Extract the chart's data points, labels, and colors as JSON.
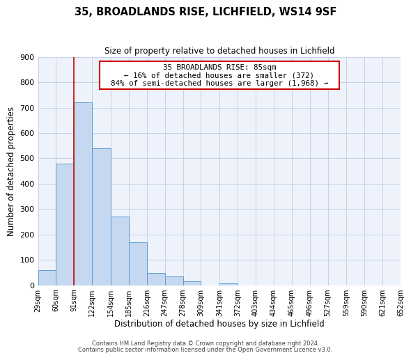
{
  "title": "35, BROADLANDS RISE, LICHFIELD, WS14 9SF",
  "subtitle": "Size of property relative to detached houses in Lichfield",
  "xlabel": "Distribution of detached houses by size in Lichfield",
  "ylabel": "Number of detached properties",
  "bin_labels": [
    "29sqm",
    "60sqm",
    "91sqm",
    "122sqm",
    "154sqm",
    "185sqm",
    "216sqm",
    "247sqm",
    "278sqm",
    "309sqm",
    "341sqm",
    "372sqm",
    "403sqm",
    "434sqm",
    "465sqm",
    "496sqm",
    "527sqm",
    "559sqm",
    "590sqm",
    "621sqm",
    "652sqm"
  ],
  "bar_values": [
    60,
    480,
    720,
    540,
    270,
    170,
    48,
    35,
    14,
    0,
    7,
    0,
    0,
    0,
    0,
    0,
    0,
    0,
    0,
    0
  ],
  "bar_edges": [
    29,
    60,
    91,
    122,
    154,
    185,
    216,
    247,
    278,
    309,
    341,
    372,
    403,
    434,
    465,
    496,
    527,
    559,
    590,
    621,
    652
  ],
  "bar_color": "#c5d8f0",
  "bar_edge_color": "#5b9bd5",
  "vline_x": 91,
  "vline_color": "#cc0000",
  "ylim": [
    0,
    900
  ],
  "yticks": [
    0,
    100,
    200,
    300,
    400,
    500,
    600,
    700,
    800,
    900
  ],
  "grid_color": "#c8d0e8",
  "bg_color": "#eef2fa",
  "annotation_text": "  35 BROADLANDS RISE: 85sqm  \n  ← 16% of detached houses are smaller (372)  \n  84% of semi-detached houses are larger (1,968) →  ",
  "annotation_box_color": "white",
  "annotation_box_edgecolor": "#cc0000",
  "footer1": "Contains HM Land Registry data © Crown copyright and database right 2024.",
  "footer2": "Contains public sector information licensed under the Open Government Licence v3.0."
}
